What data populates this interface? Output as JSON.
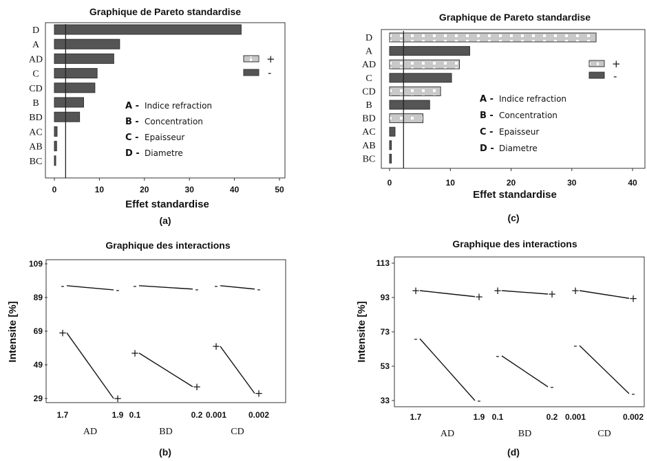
{
  "chart_data": [
    {
      "id": "a",
      "type": "bar",
      "orientation": "horizontal",
      "title": "Graphique de Pareto standardise",
      "xlabel": "Effet standardise",
      "caption": "(a)",
      "categories": [
        "D",
        "A",
        "AD",
        "C",
        "CD",
        "B",
        "BD",
        "AC",
        "AB",
        "BC"
      ],
      "values": [
        41.5,
        14.5,
        13.2,
        9.5,
        9.0,
        6.5,
        5.6,
        0.6,
        0.5,
        0.3
      ],
      "signs": [
        "-",
        "-",
        "-",
        "-",
        "-",
        "-",
        "-",
        "-",
        "-",
        "-"
      ],
      "xlim": [
        0,
        50
      ],
      "xticks": [
        0,
        10,
        20,
        30,
        40,
        50
      ],
      "reference_line": 2.5,
      "legend": {
        "plus": "+",
        "minus": "-"
      },
      "factor_key": [
        {
          "code": "A -",
          "name": "Indice refraction"
        },
        {
          "code": "B -",
          "name": "Concentration"
        },
        {
          "code": "C -",
          "name": "Epaisseur"
        },
        {
          "code": "D -",
          "name": "Diametre"
        }
      ]
    },
    {
      "id": "c",
      "type": "bar",
      "orientation": "horizontal",
      "title": "Graphique de Pareto standardise",
      "xlabel": "Effet standardise",
      "caption": "(c)",
      "categories": [
        "D",
        "A",
        "AD",
        "C",
        "CD",
        "B",
        "BD",
        "AC",
        "AB",
        "BC"
      ],
      "values": [
        34.0,
        13.2,
        11.5,
        10.2,
        8.4,
        6.6,
        5.5,
        0.9,
        0.3,
        0.3
      ],
      "signs": [
        "+",
        "-",
        "+",
        "-",
        "+",
        "-",
        "+",
        "-",
        "-",
        "-"
      ],
      "xlim": [
        0,
        40
      ],
      "xticks": [
        0,
        10,
        20,
        30,
        40
      ],
      "reference_line": 2.3,
      "legend": {
        "plus": "+",
        "minus": "-"
      },
      "factor_key": [
        {
          "code": "A -",
          "name": "Indice refraction"
        },
        {
          "code": "B -",
          "name": "Concentration"
        },
        {
          "code": "C -",
          "name": "Epaisseur"
        },
        {
          "code": "D -",
          "name": "Diametre"
        }
      ]
    },
    {
      "id": "b",
      "type": "line",
      "title": "Graphique des interactions",
      "ylabel": "Intensite [%]",
      "caption": "(b)",
      "ylim": [
        29,
        109
      ],
      "yticks": [
        29,
        49,
        69,
        89,
        109
      ],
      "facets": [
        {
          "name": "AD",
          "levels": [
            "1.7",
            "1.9"
          ],
          "lines": [
            {
              "marker": "-",
              "y": [
                96,
                93.5
              ]
            },
            {
              "marker": "+",
              "y": [
                68,
                29
              ]
            }
          ]
        },
        {
          "name": "BD",
          "levels": [
            "0.1",
            "0.2"
          ],
          "lines": [
            {
              "marker": "-",
              "y": [
                96,
                94
              ]
            },
            {
              "marker": "+",
              "y": [
                56,
                36
              ]
            }
          ]
        },
        {
          "name": "CD",
          "levels": [
            "0.001",
            "0.002"
          ],
          "lines": [
            {
              "marker": "-",
              "y": [
                96,
                94
              ]
            },
            {
              "marker": "+",
              "y": [
                60,
                32
              ]
            }
          ]
        }
      ]
    },
    {
      "id": "d",
      "type": "line",
      "title": "Graphique des interactions",
      "ylabel": "Intensite [%]",
      "caption": "(d)",
      "ylim": [
        33,
        113
      ],
      "yticks": [
        33,
        53,
        73,
        93,
        113
      ],
      "facets": [
        {
          "name": "AD",
          "levels": [
            "1.7",
            "1.9"
          ],
          "lines": [
            {
              "marker": "+",
              "y": [
                97,
                93.5
              ]
            },
            {
              "marker": "-",
              "y": [
                69,
                33
              ]
            }
          ]
        },
        {
          "name": "BD",
          "levels": [
            "0.1",
            "0.2"
          ],
          "lines": [
            {
              "marker": "+",
              "y": [
                97,
                95
              ]
            },
            {
              "marker": "-",
              "y": [
                59,
                41
              ]
            }
          ]
        },
        {
          "name": "CD",
          "levels": [
            "0.001",
            "0.002"
          ],
          "lines": [
            {
              "marker": "+",
              "y": [
                97,
                92.5
              ]
            },
            {
              "marker": "-",
              "y": [
                65,
                37
              ]
            }
          ]
        }
      ]
    }
  ]
}
